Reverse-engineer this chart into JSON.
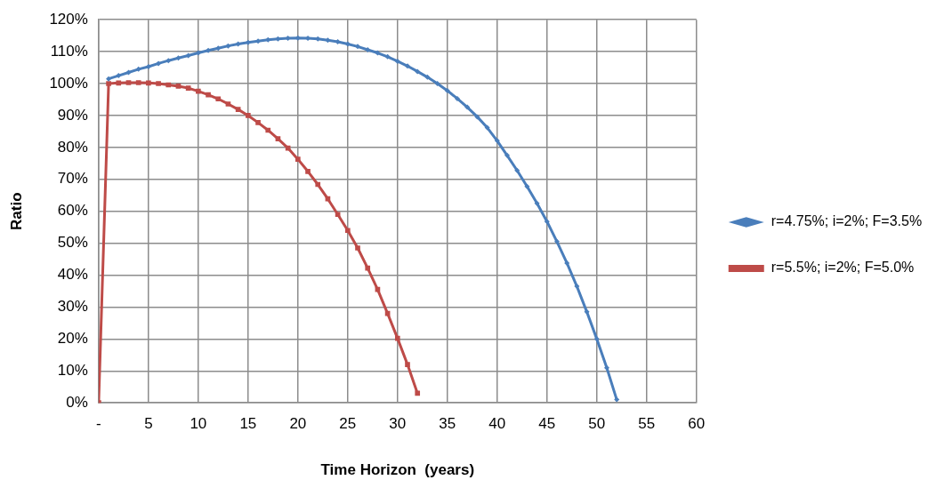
{
  "chart_data": {
    "type": "line",
    "xlabel": "Time Horizon  (years)",
    "ylabel": "Ratio",
    "xlim": [
      0,
      60
    ],
    "xticks": [
      {
        "value": 0,
        "label": "-"
      },
      5,
      10,
      15,
      20,
      25,
      30,
      35,
      40,
      45,
      50,
      55,
      60
    ],
    "ylim": [
      0,
      120
    ],
    "yticks": [
      {
        "value": 0,
        "label": "0%"
      },
      {
        "value": 10,
        "label": "10%"
      },
      {
        "value": 20,
        "label": "20%"
      },
      {
        "value": 30,
        "label": "30%"
      },
      {
        "value": 40,
        "label": "40%"
      },
      {
        "value": 50,
        "label": "50%"
      },
      {
        "value": 60,
        "label": "60%"
      },
      {
        "value": 70,
        "label": "70%"
      },
      {
        "value": 80,
        "label": "80%"
      },
      {
        "value": 90,
        "label": "90%"
      },
      {
        "value": 100,
        "label": "100%"
      },
      {
        "value": 110,
        "label": "110%"
      },
      {
        "value": 120,
        "label": "120%"
      }
    ],
    "grid": true,
    "legend": "right",
    "line_style": "solid",
    "series": [
      {
        "name": "r=4.75%; i=2%; F=3.5%",
        "color": "#4a7ebb",
        "marker": "diamond",
        "x": [
          1,
          2,
          3,
          4,
          5,
          6,
          7,
          8,
          9,
          10,
          11,
          12,
          13,
          14,
          15,
          16,
          17,
          18,
          19,
          20,
          21,
          22,
          23,
          24,
          25,
          26,
          27,
          28,
          29,
          30,
          31,
          32,
          33,
          34,
          35,
          36,
          37,
          38,
          39,
          40,
          41,
          42,
          43,
          44,
          45,
          46,
          47,
          48,
          49,
          50,
          51,
          52
        ],
        "values": [
          101.5,
          102.5,
          103.5,
          104.5,
          105.3,
          106.3,
          107.2,
          108,
          108.8,
          109.6,
          110.4,
          111.1,
          111.8,
          112.4,
          112.9,
          113.3,
          113.7,
          114,
          114.2,
          114.3,
          114.2,
          114,
          113.6,
          113.1,
          112.4,
          111.6,
          110.6,
          109.6,
          108.4,
          107,
          105.5,
          103.8,
          102,
          100,
          97.8,
          95.3,
          92.6,
          89.6,
          86.2,
          82.1,
          77.5,
          72.8,
          67.8,
          62.5,
          56.8,
          50.5,
          43.8,
          36.5,
          28.5,
          20,
          11,
          1
        ]
      },
      {
        "name": "r=5.5%; i=2%; F=5.0%",
        "color": "#be4b48",
        "marker": "square",
        "x": [
          0,
          1,
          2,
          3,
          4,
          5,
          6,
          7,
          8,
          9,
          10,
          11,
          12,
          13,
          14,
          15,
          16,
          17,
          18,
          19,
          20,
          21,
          22,
          23,
          24,
          25,
          26,
          27,
          28,
          29,
          30,
          31,
          32
        ],
        "values": [
          0,
          100,
          100.2,
          100.3,
          100.3,
          100.2,
          100,
          99.6,
          99.2,
          98.6,
          97.6,
          96.5,
          95.2,
          93.6,
          91.9,
          90,
          87.8,
          85.4,
          82.7,
          79.8,
          76.3,
          72.5,
          68.4,
          63.9,
          59,
          54,
          48.5,
          42.2,
          35.5,
          28,
          20.2,
          12,
          3
        ]
      }
    ]
  }
}
